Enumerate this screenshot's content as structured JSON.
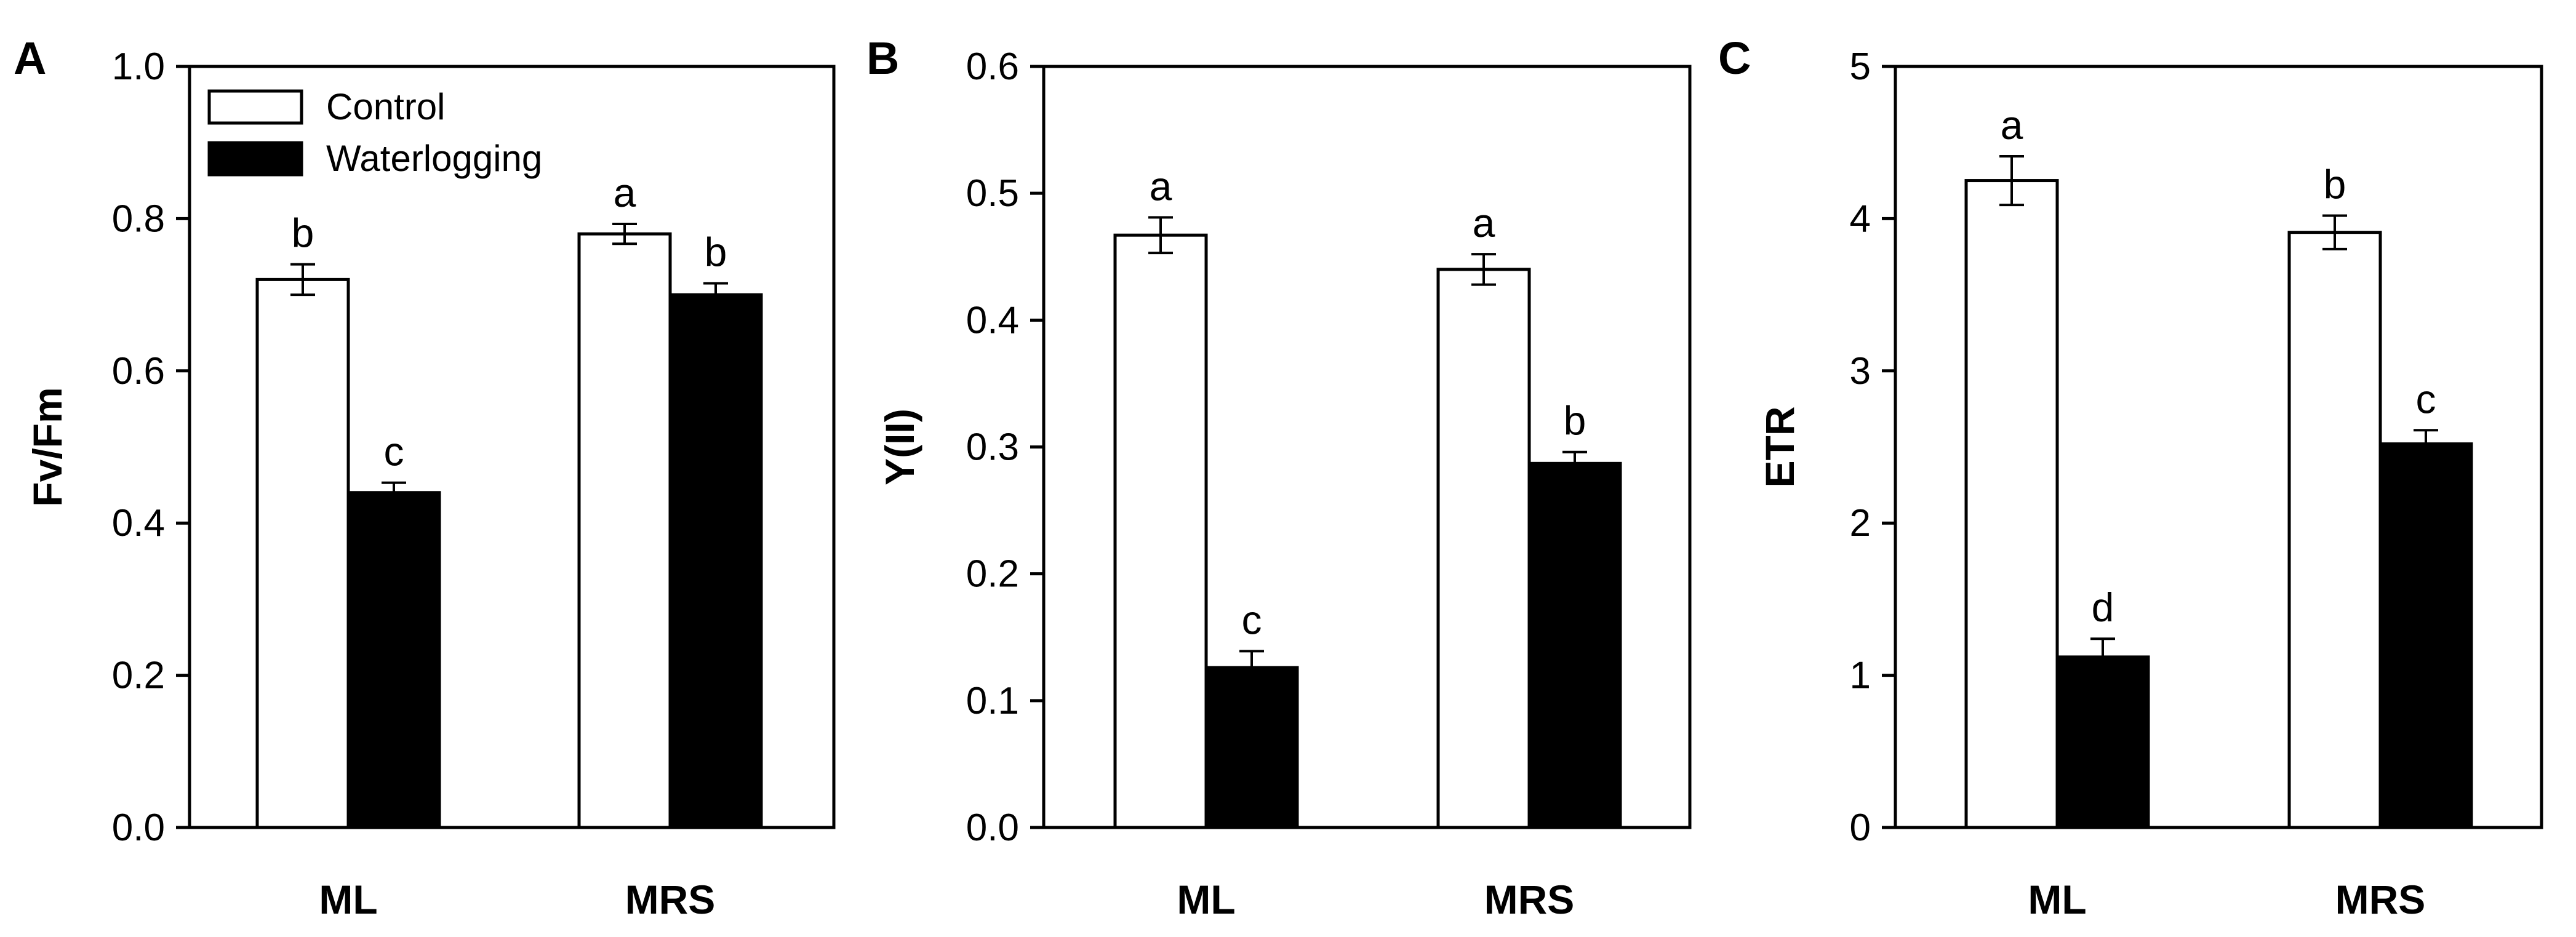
{
  "legend": {
    "items": [
      {
        "label": "Control",
        "fill": "#ffffff"
      },
      {
        "label": "Waterlogging",
        "fill": "#000000"
      }
    ]
  },
  "chart_data": [
    {
      "panel": "A",
      "type": "bar",
      "ylabel": "Fv/Fm",
      "ylim": [
        0,
        1.0
      ],
      "yticks": [
        "0.0",
        "0.2",
        "0.4",
        "0.6",
        "0.8",
        "1.0"
      ],
      "categories": [
        "ML",
        "MRS"
      ],
      "series": [
        {
          "name": "Control",
          "values": [
            0.72,
            0.78
          ],
          "errors": [
            0.02,
            0.013
          ],
          "letters": [
            "b",
            "a"
          ]
        },
        {
          "name": "Waterlogging",
          "values": [
            0.44,
            0.7
          ],
          "errors": [
            0.013,
            0.015
          ],
          "letters": [
            "c",
            "b"
          ]
        }
      ]
    },
    {
      "panel": "B",
      "type": "bar",
      "ylabel": "Y(II)",
      "ylim": [
        0,
        0.6
      ],
      "yticks": [
        "0.0",
        "0.1",
        "0.2",
        "0.3",
        "0.4",
        "0.5",
        "0.6"
      ],
      "categories": [
        "ML",
        "MRS"
      ],
      "series": [
        {
          "name": "Control",
          "values": [
            0.467,
            0.44
          ],
          "errors": [
            0.014,
            0.012
          ],
          "letters": [
            "a",
            "a"
          ]
        },
        {
          "name": "Waterlogging",
          "values": [
            0.126,
            0.287
          ],
          "errors": [
            0.013,
            0.009
          ],
          "letters": [
            "c",
            "b"
          ]
        }
      ]
    },
    {
      "panel": "C",
      "type": "bar",
      "ylabel": "ETR",
      "ylim": [
        0,
        5
      ],
      "yticks": [
        "0",
        "1",
        "2",
        "3",
        "4",
        "5"
      ],
      "categories": [
        "ML",
        "MRS"
      ],
      "series": [
        {
          "name": "Control",
          "values": [
            4.25,
            3.91
          ],
          "errors": [
            0.16,
            0.11
          ],
          "letters": [
            "a",
            "b"
          ]
        },
        {
          "name": "Waterlogging",
          "values": [
            1.12,
            2.52
          ],
          "errors": [
            0.12,
            0.09
          ],
          "letters": [
            "d",
            "c"
          ]
        }
      ]
    }
  ]
}
